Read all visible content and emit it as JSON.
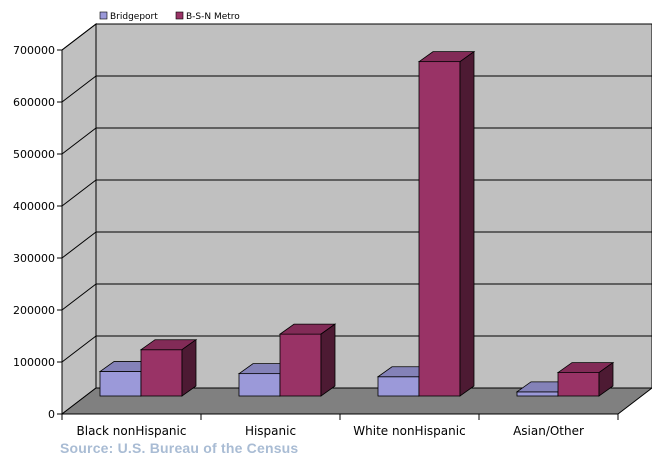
{
  "chart_data": {
    "type": "bar",
    "style": "3d-clustered-column",
    "categories": [
      "Black nonHispanic",
      "Hispanic",
      "White nonHispanic",
      "Asian/Other"
    ],
    "series": [
      {
        "name": "Bridgeport",
        "values": [
          47000,
          43000,
          37000,
          8000
        ],
        "color": "#9b99d9"
      },
      {
        "name": "B-S-N Metro",
        "values": [
          89000,
          119000,
          643000,
          45000
        ],
        "color": "#993366"
      }
    ],
    "yticks": [
      "0",
      "100000",
      "200000",
      "300000",
      "400000",
      "500000",
      "600000",
      "700000"
    ],
    "ylim": [
      0,
      700000
    ],
    "grid": true,
    "legend": "top-left",
    "wall_color": "#c0c0c0",
    "floor_color": "#808080"
  },
  "footer": {
    "source": "Source: U.S. Bureau of the Census"
  }
}
